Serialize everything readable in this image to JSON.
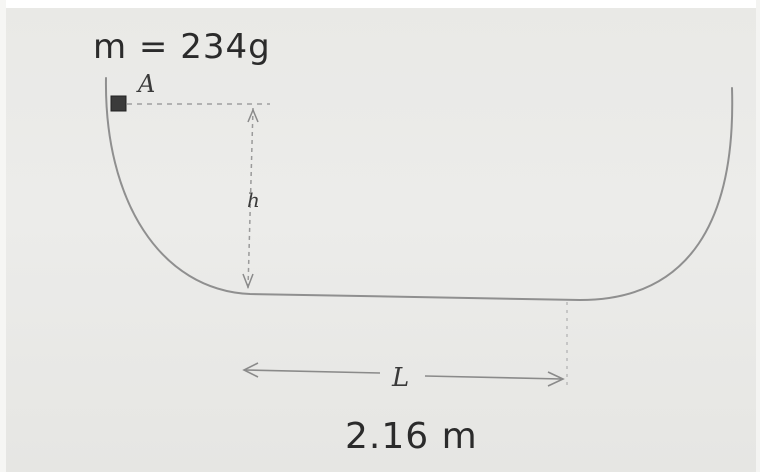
{
  "labels": {
    "mass": "m = 234g",
    "point": "A",
    "height": "h",
    "length": "L",
    "length_value": "2.16 m"
  },
  "colors": {
    "pencil": "#8f8f8f",
    "dark_pencil": "#444444",
    "block": "#3b3b3b",
    "paper": "#ebebe8"
  }
}
